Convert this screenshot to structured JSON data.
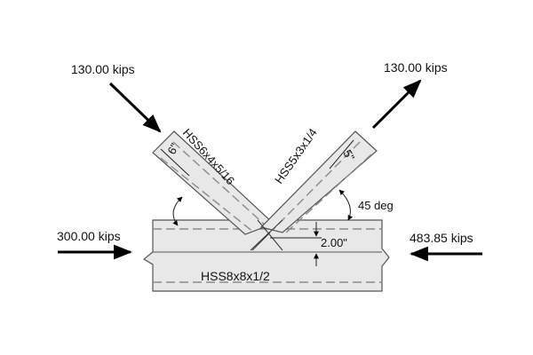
{
  "loads": {
    "left_brace_force": "130.00 kips",
    "right_brace_force": "130.00 kips",
    "chord_left_force": "300.00 kips",
    "chord_right_force": "483.85 kips"
  },
  "members": {
    "left_brace": "HSS6x4x5/16",
    "right_brace": "HSS5x3x1/4",
    "chord": "HSS8x8x1/2"
  },
  "dimensions": {
    "left_brace_depth": "6\"",
    "right_brace_depth": "5\"",
    "angle": "45 deg",
    "eccentricity": "2.00\""
  },
  "colors": {
    "member_fill": "#e8e8e8",
    "outline": "#555555",
    "arrow": "#000000"
  }
}
